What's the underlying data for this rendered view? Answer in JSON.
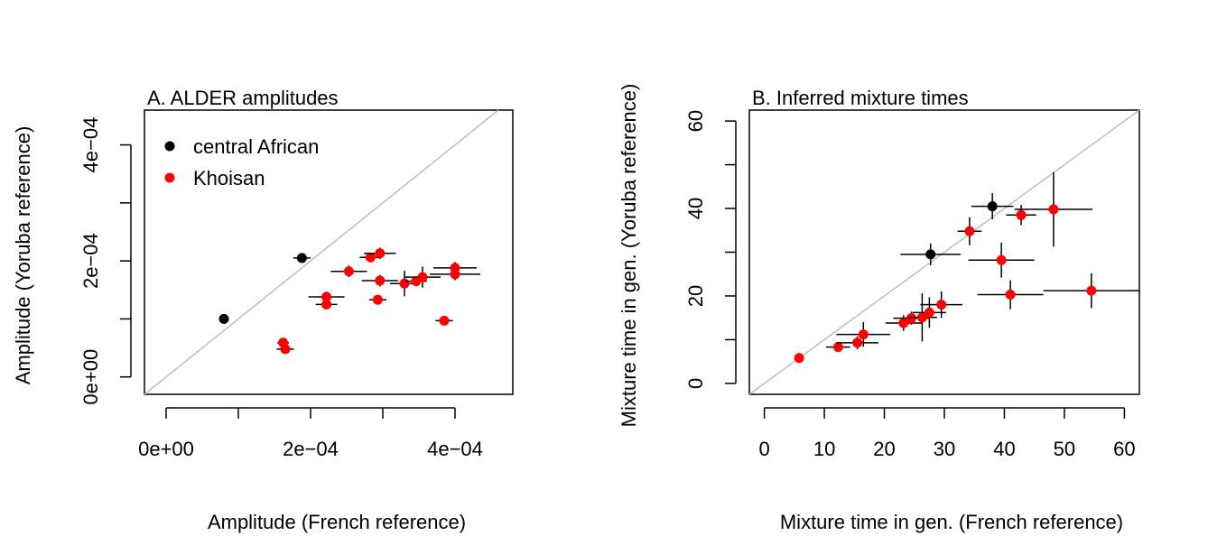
{
  "chart_data": [
    {
      "type": "scatter",
      "title": "A. ALDER amplitudes",
      "xlabel": "Amplitude (French reference)",
      "ylabel": "Amplitude (Yoruba reference)",
      "xlim": [
        -3e-05,
        0.00048
      ],
      "ylim": [
        -3e-05,
        0.00046
      ],
      "x_ticks": [
        0,
        0.0002,
        0.0004
      ],
      "x_tick_labels": [
        "0e+00",
        "2e−04",
        "4e−04"
      ],
      "x_ticks_minor": [
        0.0001,
        0.0003
      ],
      "y_ticks": [
        0,
        0.0002,
        0.0004
      ],
      "y_tick_labels": [
        "0e+00",
        "2e−04",
        "4e−04"
      ],
      "y_ticks_minor": [
        0.0001,
        0.0003
      ],
      "diagonal": true,
      "legend": {
        "placement": "top-left",
        "entries": [
          {
            "label": "central African",
            "color": "#000000"
          },
          {
            "label": "Khoisan",
            "color": "#ff0000"
          }
        ]
      },
      "points": [
        {
          "group": 0,
          "x": 8e-05,
          "y": 0.0001,
          "xerr": 0.0,
          "yerr": 0.0
        },
        {
          "group": 0,
          "x": 0.000188,
          "y": 0.000205,
          "xerr": 1.2e-05,
          "yerr": 0.0
        },
        {
          "group": 1,
          "x": 0.000162,
          "y": 5.9e-05,
          "xerr": 8e-06,
          "yerr": 0.0
        },
        {
          "group": 1,
          "x": 0.000165,
          "y": 4.8e-05,
          "xerr": 1.2e-05,
          "yerr": 0.0
        },
        {
          "group": 1,
          "x": 0.000222,
          "y": 0.000138,
          "xerr": 2.5e-05,
          "yerr": 9e-06
        },
        {
          "group": 1,
          "x": 0.000222,
          "y": 0.000125,
          "xerr": 1.5e-05,
          "yerr": 0.0
        },
        {
          "group": 1,
          "x": 0.000253,
          "y": 0.000182,
          "xerr": 2.5e-05,
          "yerr": 1e-05
        },
        {
          "group": 1,
          "x": 0.000283,
          "y": 0.000206,
          "xerr": 1.5e-05,
          "yerr": 0.0
        },
        {
          "group": 1,
          "x": 0.000296,
          "y": 0.000213,
          "xerr": 2.2e-05,
          "yerr": 1e-05
        },
        {
          "group": 1,
          "x": 0.000296,
          "y": 0.000166,
          "xerr": 2.5e-05,
          "yerr": 1e-05
        },
        {
          "group": 1,
          "x": 0.000293,
          "y": 0.000133,
          "xerr": 1.2e-05,
          "yerr": 0.0
        },
        {
          "group": 1,
          "x": 0.00033,
          "y": 0.000161,
          "xerr": 2e-05,
          "yerr": 2.2e-05
        },
        {
          "group": 1,
          "x": 0.000346,
          "y": 0.000165,
          "xerr": 1.5e-05,
          "yerr": 0.0
        },
        {
          "group": 1,
          "x": 0.000355,
          "y": 0.000172,
          "xerr": 2.5e-05,
          "yerr": 1.8e-05
        },
        {
          "group": 1,
          "x": 0.000385,
          "y": 9.7e-05,
          "xerr": 1.2e-05,
          "yerr": 0.0
        },
        {
          "group": 1,
          "x": 0.0004,
          "y": 0.000188,
          "xerr": 3e-05,
          "yerr": 1e-05
        },
        {
          "group": 1,
          "x": 0.0004,
          "y": 0.000177,
          "xerr": 3.5e-05,
          "yerr": 1e-05
        }
      ]
    },
    {
      "type": "scatter",
      "title": "B. Inferred mixture times",
      "xlabel": "Mixture time in gen. (French reference)",
      "ylabel": "Mixture time in gen. (Yoruba reference)",
      "xlim": [
        -2.5,
        62.5
      ],
      "ylim": [
        -2.5,
        62.5
      ],
      "x_ticks": [
        0,
        10,
        20,
        30,
        40,
        50,
        60
      ],
      "x_tick_labels": [
        "0",
        "10",
        "20",
        "30",
        "40",
        "50",
        "60"
      ],
      "x_ticks_minor": [],
      "y_ticks": [
        0,
        20,
        40,
        60
      ],
      "y_tick_labels": [
        "0",
        "20",
        "40",
        "60"
      ],
      "y_ticks_minor": [
        10,
        30,
        50
      ],
      "diagonal": true,
      "points": [
        {
          "group": 0,
          "x": 27.7,
          "y": 29.5,
          "xerr": 5.0,
          "yerr": 2.5
        },
        {
          "group": 0,
          "x": 38.0,
          "y": 40.5,
          "xerr": 3.5,
          "yerr": 3.0
        },
        {
          "group": 1,
          "x": 5.8,
          "y": 5.8,
          "xerr": 0.0,
          "yerr": 0.0
        },
        {
          "group": 1,
          "x": 12.3,
          "y": 8.3,
          "xerr": 2.0,
          "yerr": 0.0
        },
        {
          "group": 1,
          "x": 15.5,
          "y": 9.3,
          "xerr": 3.5,
          "yerr": 1.5
        },
        {
          "group": 1,
          "x": 16.5,
          "y": 11.2,
          "xerr": 4.5,
          "yerr": 2.8
        },
        {
          "group": 1,
          "x": 23.2,
          "y": 13.8,
          "xerr": 3.0,
          "yerr": 1.8
        },
        {
          "group": 1,
          "x": 24.5,
          "y": 14.9,
          "xerr": 3.0,
          "yerr": 1.5
        },
        {
          "group": 1,
          "x": 26.3,
          "y": 15.1,
          "xerr": 2.5,
          "yerr": 5.5
        },
        {
          "group": 1,
          "x": 27.5,
          "y": 16.2,
          "xerr": 2.8,
          "yerr": 3.5
        },
        {
          "group": 1,
          "x": 29.5,
          "y": 18.0,
          "xerr": 3.5,
          "yerr": 3.0
        },
        {
          "group": 1,
          "x": 34.2,
          "y": 34.8,
          "xerr": 2.0,
          "yerr": 3.2
        },
        {
          "group": 1,
          "x": 39.5,
          "y": 28.2,
          "xerr": 5.5,
          "yerr": 4.0
        },
        {
          "group": 1,
          "x": 41.0,
          "y": 20.3,
          "xerr": 5.5,
          "yerr": 3.3
        },
        {
          "group": 1,
          "x": 42.8,
          "y": 38.5,
          "xerr": 2.5,
          "yerr": 2.3
        },
        {
          "group": 1,
          "x": 48.2,
          "y": 39.8,
          "xerr": 6.5,
          "yerr": 8.5
        },
        {
          "group": 1,
          "x": 54.5,
          "y": 21.2,
          "xerr": 8.0,
          "yerr": 4.0
        }
      ]
    }
  ]
}
